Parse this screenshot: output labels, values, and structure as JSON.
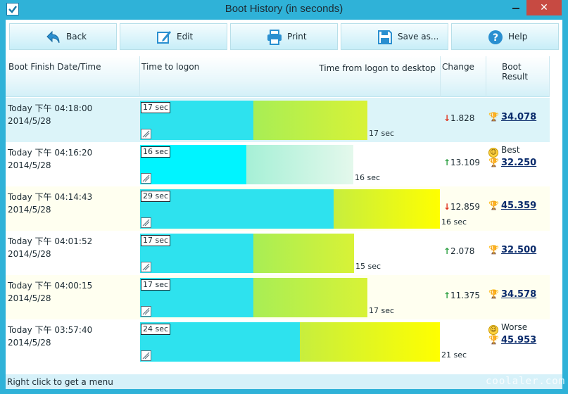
{
  "window": {
    "title": "Boot History (in seconds)",
    "close_glyph": "✕"
  },
  "toolbar": {
    "back": "Back",
    "edit": "Edit",
    "print": "Print",
    "save": "Save as...",
    "help": "Help"
  },
  "header": {
    "date": "Boot Finish Date/Time",
    "logon": "Time to logon",
    "desktop": "Time from logon to desktop",
    "change": "Change",
    "result": "Boot Result"
  },
  "rows": [
    {
      "time": "Today  下午 04:18:00",
      "date": "2014/5/28",
      "logon_sec": 17,
      "logon_label": "17 sec",
      "desktop_sec": 17,
      "desktop_label": "17 sec",
      "change_dir": "down",
      "change": "1.828",
      "note": "",
      "result": "34.078"
    },
    {
      "time": "Today  下午 04:16:20",
      "date": "2014/5/28",
      "logon_sec": 16,
      "logon_label": "16 sec",
      "desktop_sec": 16,
      "desktop_label": "16 sec",
      "change_dir": "up",
      "change": "13.109",
      "note": "Best",
      "result": "32.250"
    },
    {
      "time": "Today  下午 04:14:43",
      "date": "2014/5/28",
      "logon_sec": 29,
      "logon_label": "29 sec",
      "desktop_sec": 16,
      "desktop_label": "16 sec",
      "change_dir": "down",
      "change": "12.859",
      "note": "",
      "result": "45.359"
    },
    {
      "time": "Today  下午 04:01:52",
      "date": "2014/5/28",
      "logon_sec": 17,
      "logon_label": "17 sec",
      "desktop_sec": 15,
      "desktop_label": "15 sec",
      "change_dir": "up",
      "change": "2.078",
      "note": "",
      "result": "32.500"
    },
    {
      "time": "Today  下午 04:00:15",
      "date": "2014/5/28",
      "logon_sec": 17,
      "logon_label": "17 sec",
      "desktop_sec": 17,
      "desktop_label": "17 sec",
      "change_dir": "up",
      "change": "11.375",
      "note": "",
      "result": "34.578"
    },
    {
      "time": "Today  下午 03:57:40",
      "date": "2014/5/28",
      "logon_sec": 24,
      "logon_label": "24 sec",
      "desktop_sec": 21,
      "desktop_label": "21 sec",
      "change_dir": "",
      "change": "",
      "note": "Worse",
      "result": "45.953"
    }
  ],
  "status": {
    "text": "Right click to get a menu"
  },
  "watermark": {
    "text": "coolaler.com"
  },
  "colors": {
    "logon_bar": "#2ee2ee",
    "desktop_bar": "#b8f048",
    "up_arrow": "#2ea043",
    "down_arrow": "#e0321e",
    "result_link": "#0a2b6b"
  },
  "icons": {
    "back": "back-arrow-icon",
    "edit": "edit-pencil-icon",
    "print": "printer-icon",
    "save": "floppy-disk-icon",
    "help": "help-question-icon",
    "result": "trophy-icon"
  }
}
